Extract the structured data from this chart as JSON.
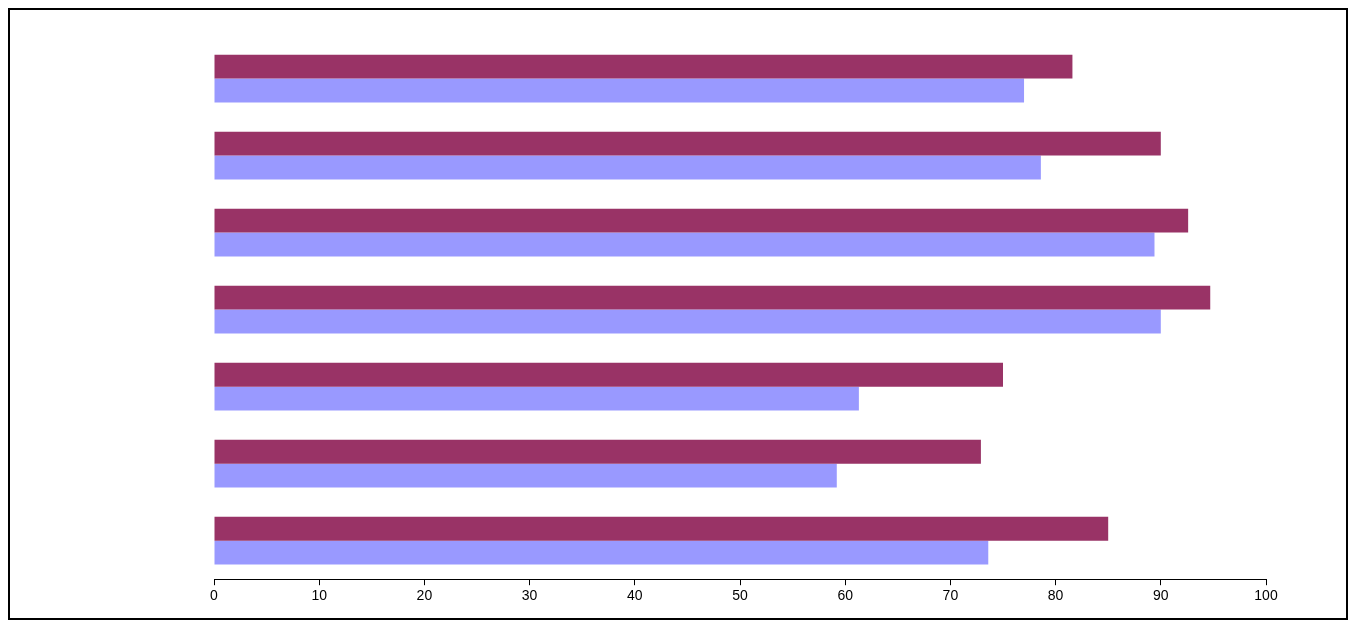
{
  "chart_data": {
    "type": "bar",
    "orientation": "horizontal",
    "categories": [
      null,
      null,
      null,
      null,
      null,
      null,
      null
    ],
    "series": [
      {
        "color": "#993366",
        "values": [
          81.6,
          90,
          92.6,
          94.7,
          75,
          72.9,
          85
        ]
      },
      {
        "color": "#9999ff",
        "values": [
          77.0,
          78.6,
          89.4,
          90,
          61.3,
          59.2,
          73.6
        ]
      }
    ],
    "xlim": [
      0,
      100
    ],
    "xticks": [
      0,
      10,
      20,
      30,
      40,
      50,
      60,
      70,
      80,
      90,
      100
    ],
    "grid": false
  }
}
